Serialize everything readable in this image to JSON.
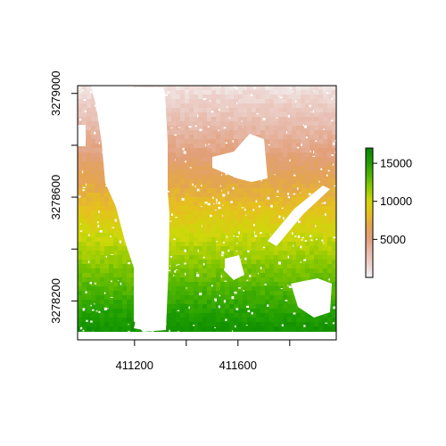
{
  "chart_data": {
    "type": "heatmap",
    "title": "",
    "xlabel": "",
    "ylabel": "",
    "xlim": [
      410980,
      411980
    ],
    "ylim": [
      3278050,
      3279030
    ],
    "x_ticks": [
      411200,
      411400,
      411600,
      411800
    ],
    "x_tick_labels": [
      "411200",
      "",
      "411600",
      ""
    ],
    "y_ticks": [
      3278200,
      3278400,
      3278600,
      3278800,
      3279000
    ],
    "y_tick_labels": [
      "3278200",
      "",
      "3278600",
      "",
      "3279000"
    ],
    "value_range": [
      0,
      17000
    ],
    "legend": {
      "placement": "right",
      "ticks": [
        5000,
        10000,
        15000
      ],
      "tick_labels": [
        "5000",
        "10000",
        "15000"
      ]
    },
    "colormap": [
      "#f2f2f2",
      "#edd1cb",
      "#e6b9a9",
      "#e2a07a",
      "#e3a54f",
      "#e6c01e",
      "#cdd80a",
      "#8ec900",
      "#4fb400",
      "#1f9e00",
      "#0c8a00"
    ],
    "no_data_color": "#ffffff",
    "grid": false,
    "pattern": "values increase from north (low, light pink) to south (high, green); white gaps are missing data, including a north-south river channel near x 411100"
  }
}
